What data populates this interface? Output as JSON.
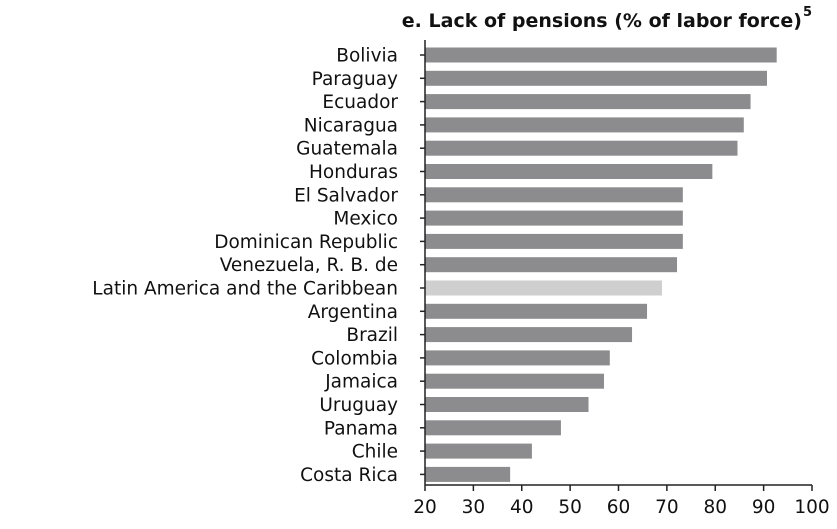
{
  "chart_data": {
    "type": "bar",
    "orientation": "horizontal",
    "title": "e. Lack of pensions (% of labor force)",
    "title_superscript": "5",
    "categories": [
      "Bolivia",
      "Paraguay",
      "Ecuador",
      "Nicaragua",
      "Guatemala",
      "Honduras",
      "El Salvador",
      "Mexico",
      "Dominican Republic",
      "Venezuela, R. B. de",
      "Latin America and the Caribbean",
      "Argentina",
      "Brazil",
      "Colombia",
      "Jamaica",
      "Uruguay",
      "Panama",
      "Chile",
      "Costa Rica"
    ],
    "values": [
      92.7,
      90.7,
      87.3,
      85.9,
      84.6,
      79.4,
      73.3,
      73.3,
      73.3,
      72.1,
      69.0,
      65.9,
      62.8,
      58.2,
      57.0,
      53.8,
      48.1,
      42.1,
      37.6
    ],
    "highlight_category": "Latin America and the Caribbean",
    "xlim": [
      20,
      100
    ],
    "xticks": [
      "20",
      "30",
      "40",
      "50",
      "60",
      "70",
      "80",
      "90",
      "100"
    ],
    "grid": false,
    "xlabel": "",
    "ylabel": ""
  },
  "colors": {
    "bar": "#8c8c8e",
    "highlight_bar": "#cfcfcf",
    "axis": "#222222",
    "text": "#111111"
  }
}
